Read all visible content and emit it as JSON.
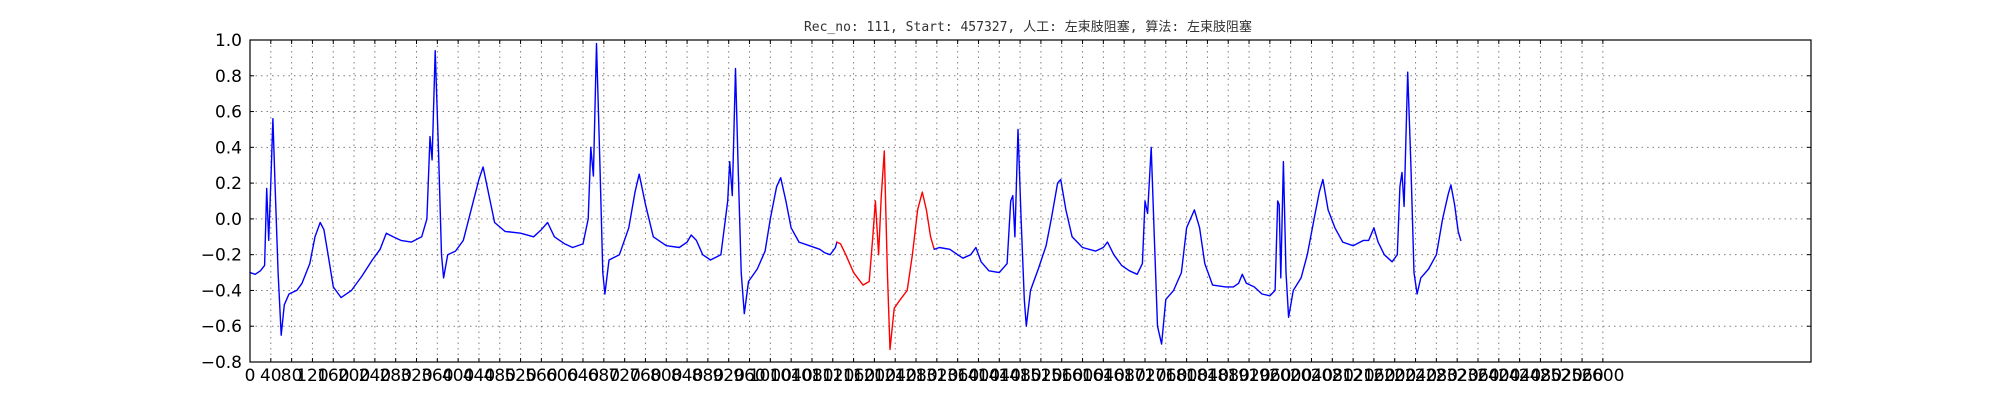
{
  "chart_data": {
    "type": "line",
    "title": "Rec_no: 111, Start: 457327, 人工: 左束肢阻塞, 算法: 左束肢阻塞",
    "xlabel": "",
    "ylabel": "",
    "xlim": [
      0,
      3000
    ],
    "ylim": [
      -0.8,
      1.0
    ],
    "grid": true,
    "x_ticks": [
      0,
      40,
      80,
      120,
      160,
      200,
      240,
      280,
      320,
      360,
      400,
      440,
      480,
      520,
      560,
      600,
      640,
      680,
      720,
      760,
      800,
      840,
      880,
      920,
      960,
      1000,
      1040,
      1080,
      1120,
      1160,
      1200,
      1240,
      1280,
      1320,
      1360,
      1400,
      1440,
      1480,
      1520,
      1560,
      1600,
      1640,
      1680,
      1720,
      1760,
      1800,
      1840,
      1880,
      1920,
      1960,
      2000,
      2040,
      2080,
      2120,
      2160,
      2200,
      2240,
      2280,
      2320,
      2360,
      2400,
      2440,
      2480,
      2520,
      2560,
      2600
    ],
    "y_ticks": [
      "1.0",
      "0.8",
      "0.6",
      "0.4",
      "0.2",
      "0.0",
      "−0.2",
      "−0.4",
      "−0.6",
      "−0.8"
    ],
    "y_tick_values": [
      1.0,
      0.8,
      0.6,
      0.4,
      0.2,
      0.0,
      -0.2,
      -0.4,
      -0.6,
      -0.8
    ],
    "series": [
      {
        "color": "#0000ff",
        "points": [
          [
            0,
            -0.3
          ],
          [
            10,
            -0.31
          ],
          [
            20,
            -0.29
          ],
          [
            28,
            -0.26
          ],
          [
            32,
            0.17
          ],
          [
            36,
            -0.12
          ],
          [
            40,
            0.2
          ],
          [
            44,
            0.56
          ],
          [
            48,
            0.2
          ],
          [
            54,
            -0.3
          ],
          [
            60,
            -0.65
          ],
          [
            66,
            -0.48
          ],
          [
            75,
            -0.42
          ],
          [
            90,
            -0.4
          ],
          [
            100,
            -0.36
          ],
          [
            115,
            -0.25
          ],
          [
            125,
            -0.1
          ],
          [
            135,
            -0.02
          ],
          [
            142,
            -0.06
          ],
          [
            150,
            -0.2
          ],
          [
            160,
            -0.38
          ],
          [
            175,
            -0.44
          ],
          [
            195,
            -0.4
          ],
          [
            215,
            -0.32
          ],
          [
            235,
            -0.23
          ],
          [
            250,
            -0.17
          ],
          [
            262,
            -0.08
          ],
          [
            275,
            -0.1
          ],
          [
            290,
            -0.12
          ],
          [
            310,
            -0.13
          ],
          [
            330,
            -0.1
          ],
          [
            340,
            0.0
          ],
          [
            346,
            0.46
          ],
          [
            350,
            0.33
          ],
          [
            356,
            0.94
          ],
          [
            362,
            0.4
          ],
          [
            368,
            -0.2
          ],
          [
            372,
            -0.33
          ],
          [
            380,
            -0.2
          ],
          [
            395,
            -0.18
          ],
          [
            410,
            -0.12
          ],
          [
            425,
            0.05
          ],
          [
            440,
            0.22
          ],
          [
            448,
            0.29
          ],
          [
            458,
            0.15
          ],
          [
            470,
            -0.02
          ],
          [
            490,
            -0.07
          ],
          [
            520,
            -0.08
          ],
          [
            545,
            -0.1
          ],
          [
            560,
            -0.06
          ],
          [
            572,
            -0.02
          ],
          [
            585,
            -0.1
          ],
          [
            605,
            -0.14
          ],
          [
            620,
            -0.16
          ],
          [
            640,
            -0.14
          ],
          [
            650,
            0.0
          ],
          [
            655,
            0.4
          ],
          [
            660,
            0.24
          ],
          [
            666,
            0.98
          ],
          [
            672,
            0.35
          ],
          [
            678,
            -0.3
          ],
          [
            682,
            -0.42
          ],
          [
            690,
            -0.23
          ],
          [
            710,
            -0.2
          ],
          [
            728,
            -0.05
          ],
          [
            740,
            0.15
          ],
          [
            748,
            0.25
          ],
          [
            760,
            0.08
          ],
          [
            775,
            -0.1
          ],
          [
            800,
            -0.15
          ],
          [
            825,
            -0.16
          ],
          [
            840,
            -0.13
          ],
          [
            848,
            -0.09
          ],
          [
            858,
            -0.12
          ],
          [
            870,
            -0.2
          ],
          [
            885,
            -0.23
          ],
          [
            905,
            -0.2
          ],
          [
            918,
            0.1
          ],
          [
            922,
            0.32
          ],
          [
            927,
            0.13
          ],
          [
            933,
            0.84
          ],
          [
            938,
            0.3
          ],
          [
            944,
            -0.3
          ],
          [
            950,
            -0.53
          ],
          [
            958,
            -0.35
          ],
          [
            975,
            -0.28
          ],
          [
            990,
            -0.18
          ],
          [
            1000,
            0.0
          ],
          [
            1012,
            0.18
          ],
          [
            1020,
            0.23
          ],
          [
            1030,
            0.1
          ],
          [
            1040,
            -0.05
          ],
          [
            1055,
            -0.13
          ],
          [
            1075,
            -0.15
          ],
          [
            1095,
            -0.17
          ],
          [
            1105,
            -0.19
          ],
          [
            1115,
            -0.2
          ],
          [
            1125,
            -0.16
          ],
          [
            1128,
            -0.13
          ]
        ]
      },
      {
        "color": "#ff0000",
        "points": [
          [
            1128,
            -0.13
          ],
          [
            1135,
            -0.14
          ],
          [
            1145,
            -0.2
          ],
          [
            1160,
            -0.3
          ],
          [
            1178,
            -0.37
          ],
          [
            1190,
            -0.35
          ],
          [
            1197,
            -0.1
          ],
          [
            1202,
            0.1
          ],
          [
            1208,
            -0.2
          ],
          [
            1213,
            0.12
          ],
          [
            1219,
            0.38
          ],
          [
            1225,
            -0.3
          ],
          [
            1230,
            -0.73
          ],
          [
            1238,
            -0.5
          ],
          [
            1250,
            -0.45
          ],
          [
            1263,
            -0.4
          ],
          [
            1273,
            -0.2
          ],
          [
            1283,
            0.05
          ],
          [
            1292,
            0.15
          ],
          [
            1300,
            0.05
          ],
          [
            1308,
            -0.1
          ],
          [
            1315,
            -0.17
          ]
        ]
      },
      {
        "color": "#0000ff",
        "points": [
          [
            1315,
            -0.17
          ],
          [
            1325,
            -0.16
          ],
          [
            1345,
            -0.17
          ],
          [
            1370,
            -0.22
          ],
          [
            1385,
            -0.2
          ],
          [
            1395,
            -0.16
          ],
          [
            1405,
            -0.24
          ],
          [
            1420,
            -0.29
          ],
          [
            1440,
            -0.3
          ],
          [
            1455,
            -0.25
          ],
          [
            1462,
            0.1
          ],
          [
            1466,
            0.13
          ],
          [
            1470,
            -0.1
          ],
          [
            1476,
            0.5
          ],
          [
            1482,
            0.0
          ],
          [
            1488,
            -0.45
          ],
          [
            1492,
            -0.6
          ],
          [
            1500,
            -0.4
          ],
          [
            1515,
            -0.28
          ],
          [
            1530,
            -0.15
          ],
          [
            1540,
            0.0
          ],
          [
            1552,
            0.2
          ],
          [
            1558,
            0.22
          ],
          [
            1568,
            0.05
          ],
          [
            1580,
            -0.1
          ],
          [
            1600,
            -0.16
          ],
          [
            1625,
            -0.18
          ],
          [
            1640,
            -0.16
          ],
          [
            1648,
            -0.13
          ],
          [
            1660,
            -0.2
          ],
          [
            1675,
            -0.26
          ],
          [
            1690,
            -0.29
          ],
          [
            1705,
            -0.31
          ],
          [
            1715,
            -0.25
          ],
          [
            1720,
            0.1
          ],
          [
            1725,
            0.03
          ],
          [
            1732,
            0.4
          ],
          [
            1738,
            -0.1
          ],
          [
            1744,
            -0.6
          ],
          [
            1752,
            -0.7
          ],
          [
            1760,
            -0.45
          ],
          [
            1775,
            -0.4
          ],
          [
            1790,
            -0.3
          ],
          [
            1800,
            -0.05
          ],
          [
            1815,
            0.05
          ],
          [
            1825,
            -0.05
          ],
          [
            1835,
            -0.25
          ],
          [
            1850,
            -0.37
          ],
          [
            1875,
            -0.38
          ],
          [
            1890,
            -0.38
          ],
          [
            1900,
            -0.36
          ],
          [
            1907,
            -0.31
          ],
          [
            1915,
            -0.36
          ],
          [
            1930,
            -0.38
          ],
          [
            1945,
            -0.42
          ],
          [
            1960,
            -0.43
          ],
          [
            1970,
            -0.4
          ],
          [
            1975,
            0.1
          ],
          [
            1978,
            0.08
          ],
          [
            1981,
            -0.33
          ],
          [
            1986,
            0.32
          ],
          [
            1991,
            -0.3
          ],
          [
            1996,
            -0.55
          ],
          [
            2005,
            -0.4
          ],
          [
            2020,
            -0.33
          ],
          [
            2032,
            -0.2
          ],
          [
            2045,
            0.0
          ],
          [
            2055,
            0.15
          ],
          [
            2062,
            0.22
          ],
          [
            2072,
            0.05
          ],
          [
            2085,
            -0.05
          ],
          [
            2100,
            -0.13
          ],
          [
            2120,
            -0.15
          ],
          [
            2140,
            -0.12
          ],
          [
            2150,
            -0.12
          ],
          [
            2160,
            -0.05
          ],
          [
            2168,
            -0.13
          ],
          [
            2180,
            -0.2
          ],
          [
            2195,
            -0.24
          ],
          [
            2205,
            -0.2
          ],
          [
            2210,
            0.18
          ],
          [
            2214,
            0.26
          ],
          [
            2218,
            0.07
          ],
          [
            2225,
            0.82
          ],
          [
            2231,
            0.3
          ],
          [
            2237,
            -0.3
          ],
          [
            2243,
            -0.42
          ],
          [
            2250,
            -0.33
          ],
          [
            2265,
            -0.28
          ],
          [
            2280,
            -0.2
          ],
          [
            2292,
            0.0
          ],
          [
            2303,
            0.14
          ],
          [
            2308,
            0.19
          ],
          [
            2315,
            0.08
          ],
          [
            2322,
            -0.07
          ],
          [
            2327,
            -0.12
          ]
        ]
      }
    ]
  }
}
